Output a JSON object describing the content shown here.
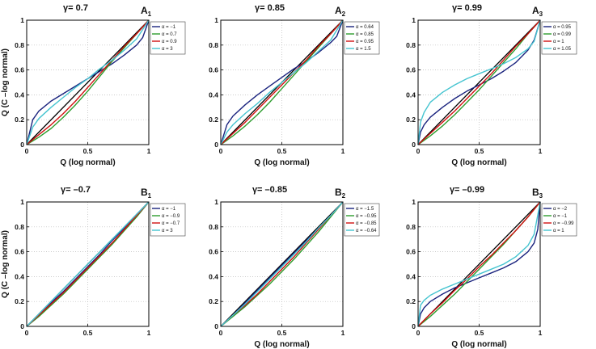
{
  "chart_data": [
    {
      "type": "line",
      "panel": "A1",
      "title": "γ= 0.7",
      "label_main": "A",
      "label_sub": "1",
      "xlabel": "Q (log normal)",
      "ylabel": "Q (C –log normal)",
      "xlim": [
        0,
        1
      ],
      "ylim": [
        0,
        1
      ],
      "x_ticks": [
        "0",
        "0.5",
        "1"
      ],
      "y_ticks": [
        "0",
        "0.2",
        "0.4",
        "0.6",
        "0.8",
        "1"
      ],
      "grid": true,
      "legend_position": "top-right",
      "reference": {
        "name": "identity",
        "color": "#000000",
        "x": [
          0,
          1
        ],
        "y": [
          0,
          1
        ]
      },
      "series": [
        {
          "name": "α = −1",
          "color": "#1a237e",
          "x": [
            0,
            0.05,
            0.1,
            0.2,
            0.3,
            0.4,
            0.5,
            0.6,
            0.7,
            0.8,
            0.9,
            0.95,
            1
          ],
          "y": [
            0,
            0.2,
            0.27,
            0.35,
            0.41,
            0.47,
            0.53,
            0.59,
            0.65,
            0.72,
            0.8,
            0.86,
            1
          ]
        },
        {
          "name": "α = 0.7",
          "color": "#2e9d2e",
          "x": [
            0,
            0.1,
            0.2,
            0.3,
            0.4,
            0.5,
            0.6,
            0.7,
            0.8,
            0.9,
            1
          ],
          "y": [
            0,
            0.06,
            0.13,
            0.22,
            0.32,
            0.43,
            0.55,
            0.67,
            0.78,
            0.89,
            1
          ]
        },
        {
          "name": "α = 0.9",
          "color": "#d01010",
          "x": [
            0,
            0.1,
            0.2,
            0.3,
            0.4,
            0.5,
            0.6,
            0.7,
            0.8,
            0.9,
            1
          ],
          "y": [
            0,
            0.08,
            0.16,
            0.25,
            0.35,
            0.46,
            0.57,
            0.68,
            0.79,
            0.89,
            1
          ]
        },
        {
          "name": "α = 3",
          "color": "#45c4d0",
          "x": [
            0,
            0.05,
            0.1,
            0.2,
            0.3,
            0.4,
            0.5,
            0.6,
            0.7,
            0.8,
            0.9,
            1
          ],
          "y": [
            0,
            0.14,
            0.21,
            0.3,
            0.38,
            0.46,
            0.53,
            0.61,
            0.68,
            0.76,
            0.85,
            1
          ]
        }
      ]
    },
    {
      "type": "line",
      "panel": "A2",
      "title": "γ= 0.85",
      "label_main": "A",
      "label_sub": "2",
      "xlabel": "Q (log normal)",
      "ylabel": "",
      "xlim": [
        0,
        1
      ],
      "ylim": [
        0,
        1
      ],
      "x_ticks": [
        "0",
        "0.5",
        "1"
      ],
      "y_ticks": [
        "0",
        "0.2",
        "0.4",
        "0.6",
        "0.8",
        "1"
      ],
      "grid": true,
      "legend_position": "top-right",
      "reference": {
        "name": "identity",
        "color": "#000000",
        "x": [
          0,
          1
        ],
        "y": [
          0,
          1
        ]
      },
      "series": [
        {
          "name": "α = 0.64",
          "color": "#1a237e",
          "x": [
            0,
            0.05,
            0.1,
            0.2,
            0.3,
            0.4,
            0.5,
            0.6,
            0.7,
            0.8,
            0.9,
            0.95,
            1
          ],
          "y": [
            0,
            0.16,
            0.23,
            0.32,
            0.4,
            0.47,
            0.54,
            0.61,
            0.67,
            0.74,
            0.82,
            0.87,
            1
          ]
        },
        {
          "name": "α = 0.85",
          "color": "#2e9d2e",
          "x": [
            0,
            0.1,
            0.2,
            0.3,
            0.4,
            0.5,
            0.6,
            0.7,
            0.8,
            0.9,
            1
          ],
          "y": [
            0,
            0.07,
            0.15,
            0.24,
            0.34,
            0.45,
            0.56,
            0.67,
            0.78,
            0.89,
            1
          ]
        },
        {
          "name": "α = 0.95",
          "color": "#d01010",
          "x": [
            0,
            0.1,
            0.2,
            0.3,
            0.4,
            0.5,
            0.6,
            0.7,
            0.8,
            0.9,
            1
          ],
          "y": [
            0,
            0.09,
            0.18,
            0.28,
            0.38,
            0.48,
            0.58,
            0.68,
            0.79,
            0.89,
            1
          ]
        },
        {
          "name": "α = 1.5",
          "color": "#45c4d0",
          "x": [
            0,
            0.05,
            0.1,
            0.2,
            0.3,
            0.4,
            0.5,
            0.6,
            0.7,
            0.8,
            0.9,
            1
          ],
          "y": [
            0,
            0.1,
            0.16,
            0.25,
            0.33,
            0.42,
            0.5,
            0.58,
            0.66,
            0.75,
            0.84,
            1
          ]
        }
      ]
    },
    {
      "type": "line",
      "panel": "A3",
      "title": "γ= 0.99",
      "label_main": "A",
      "label_sub": "3",
      "xlabel": "Q (log normal)",
      "ylabel": "",
      "xlim": [
        0,
        1
      ],
      "ylim": [
        0,
        1
      ],
      "x_ticks": [
        "0",
        "0.5",
        "1"
      ],
      "y_ticks": [
        "0",
        "0.2",
        "0.4",
        "0.6",
        "0.8",
        "1"
      ],
      "grid": true,
      "legend_position": "top-right",
      "reference": {
        "name": "identity",
        "color": "#000000",
        "x": [
          0,
          1
        ],
        "y": [
          0,
          1
        ]
      },
      "series": [
        {
          "name": "α = 0.95",
          "color": "#1a237e",
          "x": [
            0,
            0.02,
            0.05,
            0.1,
            0.2,
            0.3,
            0.4,
            0.5,
            0.6,
            0.7,
            0.8,
            0.9,
            0.95,
            1
          ],
          "y": [
            0,
            0.1,
            0.16,
            0.22,
            0.3,
            0.37,
            0.43,
            0.48,
            0.53,
            0.59,
            0.66,
            0.76,
            0.84,
            1
          ]
        },
        {
          "name": "α = 0.99",
          "color": "#2e9d2e",
          "x": [
            0,
            0.1,
            0.2,
            0.3,
            0.4,
            0.5,
            0.6,
            0.7,
            0.8,
            0.9,
            1
          ],
          "y": [
            0,
            0.07,
            0.15,
            0.24,
            0.34,
            0.44,
            0.55,
            0.66,
            0.77,
            0.89,
            1
          ]
        },
        {
          "name": "α = 1",
          "color": "#d01010",
          "x": [
            0,
            0.1,
            0.2,
            0.3,
            0.4,
            0.5,
            0.6,
            0.7,
            0.8,
            0.9,
            1
          ],
          "y": [
            0,
            0.09,
            0.18,
            0.27,
            0.37,
            0.47,
            0.57,
            0.68,
            0.79,
            0.89,
            1
          ]
        },
        {
          "name": "α = 1.05",
          "color": "#45c4d0",
          "x": [
            0,
            0.02,
            0.05,
            0.1,
            0.2,
            0.3,
            0.4,
            0.5,
            0.6,
            0.7,
            0.8,
            0.9,
            0.95,
            1
          ],
          "y": [
            0,
            0.18,
            0.26,
            0.34,
            0.42,
            0.48,
            0.53,
            0.57,
            0.61,
            0.65,
            0.7,
            0.77,
            0.83,
            1
          ]
        }
      ]
    },
    {
      "type": "line",
      "panel": "B1",
      "title": "γ= –0.7",
      "label_main": "B",
      "label_sub": "1",
      "xlabel": "",
      "ylabel": "Q (C –log normal)",
      "xlim": [
        0,
        1
      ],
      "ylim": [
        0,
        1
      ],
      "x_ticks": [
        "0",
        "0.5",
        "1"
      ],
      "y_ticks": [
        "0",
        "0.2",
        "0.4",
        "0.6",
        "0.8",
        "1"
      ],
      "grid": true,
      "legend_position": "top-right",
      "reference": {
        "name": "identity",
        "color": "#000000",
        "x": [
          0,
          1
        ],
        "y": [
          0,
          1
        ]
      },
      "series": [
        {
          "name": "α = −1",
          "color": "#1a237e",
          "x": [
            0,
            0.1,
            0.2,
            0.3,
            0.4,
            0.5,
            0.6,
            0.7,
            0.8,
            0.9,
            1
          ],
          "y": [
            0,
            0.09,
            0.19,
            0.28,
            0.38,
            0.48,
            0.58,
            0.69,
            0.79,
            0.9,
            1
          ]
        },
        {
          "name": "α = −0.9",
          "color": "#2e9d2e",
          "x": [
            0,
            0.1,
            0.2,
            0.3,
            0.4,
            0.5,
            0.6,
            0.7,
            0.8,
            0.9,
            1
          ],
          "y": [
            0,
            0.08,
            0.17,
            0.26,
            0.36,
            0.46,
            0.56,
            0.66,
            0.77,
            0.88,
            1
          ]
        },
        {
          "name": "α = −0.7",
          "color": "#d01010",
          "x": [
            0,
            0.1,
            0.2,
            0.3,
            0.4,
            0.5,
            0.6,
            0.7,
            0.8,
            0.9,
            1
          ],
          "y": [
            0,
            0.09,
            0.18,
            0.27,
            0.37,
            0.47,
            0.57,
            0.67,
            0.78,
            0.89,
            1
          ]
        },
        {
          "name": "α = 3",
          "color": "#45c4d0",
          "x": [
            0,
            0.1,
            0.2,
            0.3,
            0.4,
            0.5,
            0.6,
            0.7,
            0.8,
            0.9,
            1
          ],
          "y": [
            0,
            0.1,
            0.2,
            0.3,
            0.4,
            0.5,
            0.6,
            0.7,
            0.8,
            0.9,
            1
          ]
        }
      ]
    },
    {
      "type": "line",
      "panel": "B2",
      "title": "γ= –0.85",
      "label_main": "B",
      "label_sub": "2",
      "xlabel": "Q (log normal)",
      "ylabel": "",
      "xlim": [
        0,
        1
      ],
      "ylim": [
        0,
        1
      ],
      "x_ticks": [
        "0",
        "0.5",
        "1"
      ],
      "y_ticks": [
        "0",
        "0.2",
        "0.4",
        "0.6",
        "0.8",
        "1"
      ],
      "grid": true,
      "legend_position": "top-right",
      "reference": {
        "name": "identity",
        "color": "#000000",
        "x": [
          0,
          1
        ],
        "y": [
          0,
          1
        ]
      },
      "series": [
        {
          "name": "α = −1.5",
          "color": "#1a237e",
          "x": [
            0,
            0.1,
            0.2,
            0.3,
            0.4,
            0.5,
            0.6,
            0.7,
            0.8,
            0.9,
            1
          ],
          "y": [
            0,
            0.09,
            0.19,
            0.29,
            0.39,
            0.49,
            0.59,
            0.69,
            0.79,
            0.89,
            1
          ]
        },
        {
          "name": "α = −0.95",
          "color": "#2e9d2e",
          "x": [
            0,
            0.1,
            0.2,
            0.3,
            0.4,
            0.5,
            0.6,
            0.7,
            0.8,
            0.9,
            1
          ],
          "y": [
            0,
            0.08,
            0.16,
            0.25,
            0.34,
            0.44,
            0.54,
            0.65,
            0.76,
            0.88,
            1
          ]
        },
        {
          "name": "α = −0.85",
          "color": "#d01010",
          "x": [
            0,
            0.1,
            0.2,
            0.3,
            0.4,
            0.5,
            0.6,
            0.7,
            0.8,
            0.9,
            1
          ],
          "y": [
            0,
            0.09,
            0.17,
            0.26,
            0.36,
            0.46,
            0.56,
            0.67,
            0.78,
            0.89,
            1
          ]
        },
        {
          "name": "α = −0.64",
          "color": "#45c4d0",
          "x": [
            0,
            0.1,
            0.2,
            0.3,
            0.4,
            0.5,
            0.6,
            0.7,
            0.8,
            0.9,
            1
          ],
          "y": [
            0,
            0.09,
            0.18,
            0.28,
            0.38,
            0.48,
            0.58,
            0.68,
            0.79,
            0.89,
            1
          ]
        }
      ]
    },
    {
      "type": "line",
      "panel": "B3",
      "title": "γ= –0.99",
      "label_main": "B",
      "label_sub": "3",
      "xlabel": "Q (log normal)",
      "ylabel": "",
      "xlim": [
        0,
        1
      ],
      "ylim": [
        0,
        1
      ],
      "x_ticks": [
        "0",
        "0.5",
        "1"
      ],
      "y_ticks": [
        "0",
        "0.2",
        "0.4",
        "0.6",
        "0.8",
        "1"
      ],
      "grid": true,
      "legend_position": "top-right",
      "reference": {
        "name": "identity",
        "color": "#000000",
        "x": [
          0,
          1
        ],
        "y": [
          0,
          1
        ]
      },
      "series": [
        {
          "name": "α = −2",
          "color": "#1a237e",
          "x": [
            0,
            0.02,
            0.05,
            0.1,
            0.2,
            0.3,
            0.4,
            0.5,
            0.6,
            0.7,
            0.8,
            0.9,
            0.95,
            0.98,
            1
          ],
          "y": [
            0,
            0.1,
            0.15,
            0.2,
            0.26,
            0.31,
            0.35,
            0.39,
            0.43,
            0.47,
            0.52,
            0.6,
            0.67,
            0.78,
            1
          ]
        },
        {
          "name": "α = −1",
          "color": "#2e9d2e",
          "x": [
            0,
            0.1,
            0.2,
            0.3,
            0.4,
            0.5,
            0.6,
            0.7,
            0.8,
            0.9,
            1
          ],
          "y": [
            0,
            0.08,
            0.17,
            0.26,
            0.36,
            0.46,
            0.56,
            0.66,
            0.77,
            0.88,
            1
          ]
        },
        {
          "name": "α = −0.99",
          "color": "#d01010",
          "x": [
            0,
            0.1,
            0.2,
            0.3,
            0.4,
            0.5,
            0.6,
            0.7,
            0.8,
            0.9,
            1
          ],
          "y": [
            0,
            0.1,
            0.19,
            0.29,
            0.38,
            0.48,
            0.57,
            0.67,
            0.77,
            0.88,
            1
          ]
        },
        {
          "name": "α = 1",
          "color": "#45c4d0",
          "x": [
            0,
            0.02,
            0.05,
            0.1,
            0.2,
            0.3,
            0.4,
            0.5,
            0.6,
            0.7,
            0.8,
            0.9,
            0.95,
            1
          ],
          "y": [
            0,
            0.17,
            0.21,
            0.25,
            0.3,
            0.34,
            0.38,
            0.42,
            0.46,
            0.5,
            0.56,
            0.65,
            0.74,
            1
          ]
        }
      ]
    }
  ]
}
